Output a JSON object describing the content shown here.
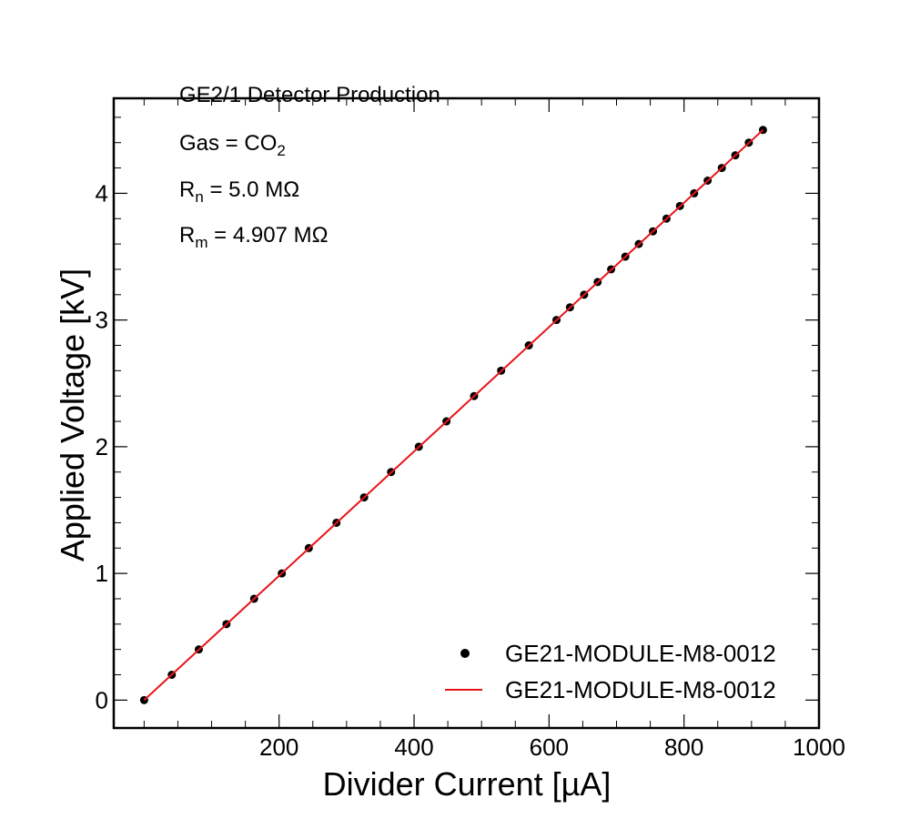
{
  "chart_data": {
    "type": "scatter",
    "xlabel": "Divider Current [µA]",
    "ylabel": "Applied Voltage [kV]",
    "xlim": [
      -45,
      1000
    ],
    "ylim": [
      -0.22,
      4.75
    ],
    "x_ticks": [
      200,
      400,
      600,
      800,
      1000
    ],
    "y_ticks": [
      0,
      1,
      2,
      3,
      4
    ],
    "x_minor_ticks": [
      0,
      50,
      100,
      150,
      250,
      300,
      350,
      450,
      500,
      550,
      650,
      700,
      750,
      850,
      900,
      950
    ],
    "y_minor_ticks": [
      0.2,
      0.4,
      0.6,
      0.8,
      1.2,
      1.4,
      1.6,
      1.8,
      2.2,
      2.4,
      2.6,
      2.8,
      3.2,
      3.4,
      3.6,
      3.8,
      4.2,
      4.4,
      4.6
    ],
    "grid": false,
    "legend_position": "lower-right",
    "annotations": {
      "title": "GE2/1 Detector Production",
      "gas_prefix": "Gas = CO",
      "gas_sub": "2",
      "rn_prefix": "R",
      "rn_sub": "n",
      "rn_value": " = 5.0 MΩ",
      "rm_prefix": "R",
      "rm_sub": "m",
      "rm_value": " = 4.907 MΩ"
    },
    "series": [
      {
        "name": "GE21-MODULE-M8-0012",
        "kind": "points",
        "color": "#000000",
        "x": [
          0,
          41,
          81,
          122,
          163,
          204,
          244,
          285,
          326,
          366,
          407,
          448,
          489,
          529,
          570,
          611,
          631,
          652,
          672,
          692,
          713,
          733,
          754,
          774,
          794,
          815,
          835,
          856,
          876,
          896,
          917
        ],
        "y": [
          0.0,
          0.2,
          0.4,
          0.6,
          0.8,
          1.0,
          1.2,
          1.4,
          1.6,
          1.8,
          2.0,
          2.2,
          2.4,
          2.6,
          2.8,
          3.0,
          3.1,
          3.2,
          3.3,
          3.4,
          3.5,
          3.6,
          3.7,
          3.8,
          3.9,
          4.0,
          4.1,
          4.2,
          4.3,
          4.4,
          4.5
        ]
      },
      {
        "name": "GE21-MODULE-M8-0012",
        "kind": "fit-line",
        "color": "#e8141b",
        "x": [
          0,
          917
        ],
        "y": [
          0.0,
          4.5
        ]
      }
    ]
  }
}
